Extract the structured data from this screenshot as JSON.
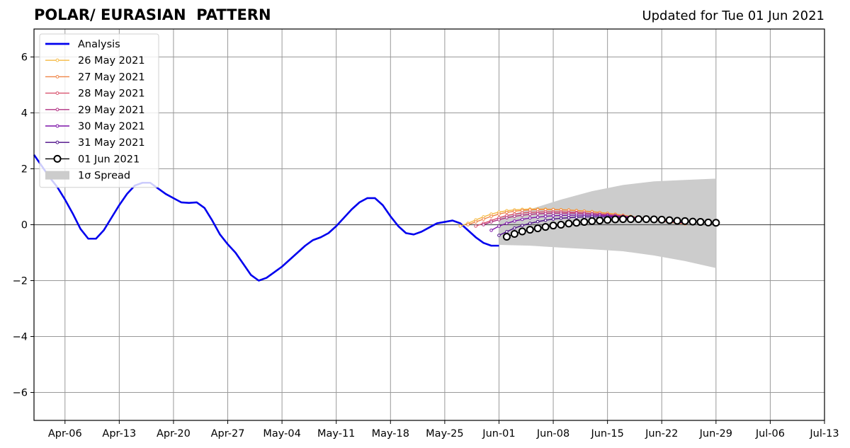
{
  "header": {
    "title": "POLAR/ EURASIAN  PATTERN",
    "subtitle": "Updated for Tue 01 Jun 2021"
  },
  "chart_data": {
    "type": "line",
    "title": "POLAR/ EURASIAN  PATTERN",
    "subtitle": "Updated for Tue 01 Jun 2021",
    "xlabel": "",
    "ylabel": "",
    "x_unit": "days since Apr-02 2021",
    "xlim": [
      0,
      102
    ],
    "ylim": [
      -7,
      7
    ],
    "xticks": [
      {
        "day": 4,
        "label": "Apr-06"
      },
      {
        "day": 11,
        "label": "Apr-13"
      },
      {
        "day": 18,
        "label": "Apr-20"
      },
      {
        "day": 25,
        "label": "Apr-27"
      },
      {
        "day": 32,
        "label": "May-04"
      },
      {
        "day": 39,
        "label": "May-11"
      },
      {
        "day": 46,
        "label": "May-18"
      },
      {
        "day": 53,
        "label": "May-25"
      },
      {
        "day": 60,
        "label": "Jun-01"
      },
      {
        "day": 67,
        "label": "Jun-08"
      },
      {
        "day": 74,
        "label": "Jun-15"
      },
      {
        "day": 81,
        "label": "Jun-22"
      },
      {
        "day": 88,
        "label": "Jun-29"
      },
      {
        "day": 95,
        "label": "Jul-06"
      },
      {
        "day": 102,
        "label": "Jul-13"
      }
    ],
    "yticks": [
      {
        "value": -6,
        "label": "−6"
      },
      {
        "value": -4,
        "label": "−4"
      },
      {
        "value": -2,
        "label": "−2"
      },
      {
        "value": 0,
        "label": "0"
      },
      {
        "value": 2,
        "label": "2"
      },
      {
        "value": 4,
        "label": "4"
      },
      {
        "value": 6,
        "label": "6"
      }
    ],
    "grid": true,
    "legend_position": "top-left",
    "analysis": {
      "name": "Analysis",
      "color": "#0000ee",
      "x": [
        0,
        1,
        2,
        3,
        4,
        5,
        6,
        7,
        8,
        9,
        10,
        11,
        12,
        13,
        14,
        15,
        16,
        17,
        18,
        19,
        20,
        21,
        22,
        23,
        24,
        25,
        26,
        27,
        28,
        29,
        30,
        31,
        32,
        33,
        34,
        35,
        36,
        37,
        38,
        39,
        40,
        41,
        42,
        43,
        44,
        45,
        46,
        47,
        48,
        49,
        50,
        51,
        52,
        53,
        54,
        55,
        56,
        57,
        58,
        59,
        60
      ],
      "y": [
        2.5,
        2.1,
        1.7,
        1.35,
        0.9,
        0.4,
        -0.15,
        -0.5,
        -0.5,
        -0.2,
        0.25,
        0.7,
        1.1,
        1.4,
        1.5,
        1.5,
        1.3,
        1.1,
        0.95,
        0.8,
        0.78,
        0.8,
        0.6,
        0.15,
        -0.35,
        -0.7,
        -1.0,
        -1.4,
        -1.8,
        -2.0,
        -1.9,
        -1.7,
        -1.5,
        -1.25,
        -1.0,
        -0.75,
        -0.55,
        -0.45,
        -0.3,
        -0.05,
        0.25,
        0.55,
        0.8,
        0.95,
        0.95,
        0.7,
        0.3,
        -0.05,
        -0.3,
        -0.35,
        -0.25,
        -0.1,
        0.05,
        0.1,
        0.15,
        0.05,
        -0.2,
        -0.45,
        -0.65,
        -0.75,
        -0.75
      ]
    },
    "forecasts": [
      {
        "name": "26 May 2021",
        "color": "#f5b942",
        "start": 55,
        "y": [
          -0.05,
          0.05,
          0.17,
          0.28,
          0.38,
          0.45,
          0.5,
          0.53,
          0.55,
          0.56,
          0.56,
          0.56,
          0.55,
          0.54,
          0.53,
          0.51,
          0.49,
          0.47,
          0.44,
          0.41,
          0.38,
          0.34,
          0.3,
          0.26,
          0.22,
          0.18,
          0.14,
          0.1,
          0.06,
          0.03
        ]
      },
      {
        "name": "27 May 2021",
        "color": "#ef8547",
        "start": 56,
        "y": [
          0.0,
          0.1,
          0.2,
          0.3,
          0.38,
          0.44,
          0.48,
          0.51,
          0.53,
          0.54,
          0.54,
          0.54,
          0.53,
          0.52,
          0.5,
          0.48,
          0.46,
          0.43,
          0.4,
          0.37,
          0.33,
          0.29,
          0.25,
          0.21,
          0.17,
          0.13,
          0.09,
          0.06,
          0.03
        ]
      },
      {
        "name": "28 May 2021",
        "color": "#d9536f",
        "start": 57,
        "y": [
          -0.05,
          0.05,
          0.15,
          0.25,
          0.33,
          0.38,
          0.42,
          0.44,
          0.45,
          0.46,
          0.46,
          0.46,
          0.45,
          0.44,
          0.42,
          0.4,
          0.38,
          0.36,
          0.33,
          0.3,
          0.27,
          0.24,
          0.21,
          0.18,
          0.15,
          0.12,
          0.09,
          0.06
        ]
      },
      {
        "name": "29 May 2021",
        "color": "#b03082",
        "start": 58,
        "y": [
          0.0,
          0.1,
          0.18,
          0.25,
          0.3,
          0.34,
          0.37,
          0.39,
          0.4,
          0.41,
          0.41,
          0.41,
          0.41,
          0.4,
          0.39,
          0.37,
          0.35,
          0.33,
          0.31,
          0.28,
          0.25,
          0.22,
          0.19,
          0.16,
          0.13,
          0.1,
          0.07
        ]
      },
      {
        "name": "30 May 2021",
        "color": "#7d14a8",
        "start": 59,
        "y": [
          -0.2,
          -0.05,
          0.05,
          0.13,
          0.19,
          0.24,
          0.27,
          0.3,
          0.32,
          0.33,
          0.34,
          0.34,
          0.34,
          0.34,
          0.33,
          0.32,
          0.3,
          0.28,
          0.26,
          0.24,
          0.21,
          0.18,
          0.15,
          0.12,
          0.09,
          0.06
        ]
      },
      {
        "name": "31 May 2021",
        "color": "#4a0a86",
        "start": 60,
        "y": [
          -0.38,
          -0.25,
          -0.12,
          -0.03,
          0.05,
          0.11,
          0.16,
          0.2,
          0.23,
          0.25,
          0.27,
          0.28,
          0.28,
          0.28,
          0.28,
          0.27,
          0.26,
          0.24,
          0.22,
          0.2,
          0.18,
          0.16,
          0.13,
          0.1,
          0.07
        ]
      }
    ],
    "latest": {
      "name": "01 Jun 2021",
      "color": "#000000",
      "start": 61,
      "y": [
        -0.43,
        -0.33,
        -0.24,
        -0.18,
        -0.13,
        -0.08,
        -0.03,
        0.0,
        0.04,
        0.07,
        0.1,
        0.13,
        0.15,
        0.17,
        0.19,
        0.2,
        0.2,
        0.2,
        0.2,
        0.19,
        0.18,
        0.16,
        0.14,
        0.13,
        0.11,
        0.1,
        0.08,
        0.07
      ]
    },
    "spread": {
      "name": "1σ Spread",
      "color": "#cccccc",
      "x": [
        60,
        64,
        68,
        72,
        76,
        80,
        84,
        88
      ],
      "upper": [
        0.25,
        0.55,
        0.9,
        1.2,
        1.42,
        1.55,
        1.6,
        1.65
      ],
      "lower": [
        -0.72,
        -0.75,
        -0.82,
        -0.88,
        -0.95,
        -1.1,
        -1.3,
        -1.55
      ]
    },
    "legend": [
      {
        "label": "Analysis",
        "kind": "thick",
        "color": "#0000ee"
      },
      {
        "label": "26 May 2021",
        "kind": "dotline",
        "color": "#f5b942"
      },
      {
        "label": "27 May 2021",
        "kind": "dotline",
        "color": "#ef8547"
      },
      {
        "label": "28 May 2021",
        "kind": "dotline",
        "color": "#d9536f"
      },
      {
        "label": "29 May 2021",
        "kind": "dotline",
        "color": "#b03082"
      },
      {
        "label": "30 May 2021",
        "kind": "dotline",
        "color": "#7d14a8"
      },
      {
        "label": "31 May 2021",
        "kind": "dotline",
        "color": "#4a0a86"
      },
      {
        "label": "01 Jun 2021",
        "kind": "circle",
        "color": "#000000"
      },
      {
        "label": "1σ Spread",
        "kind": "patch",
        "color": "#cccccc"
      }
    ]
  }
}
